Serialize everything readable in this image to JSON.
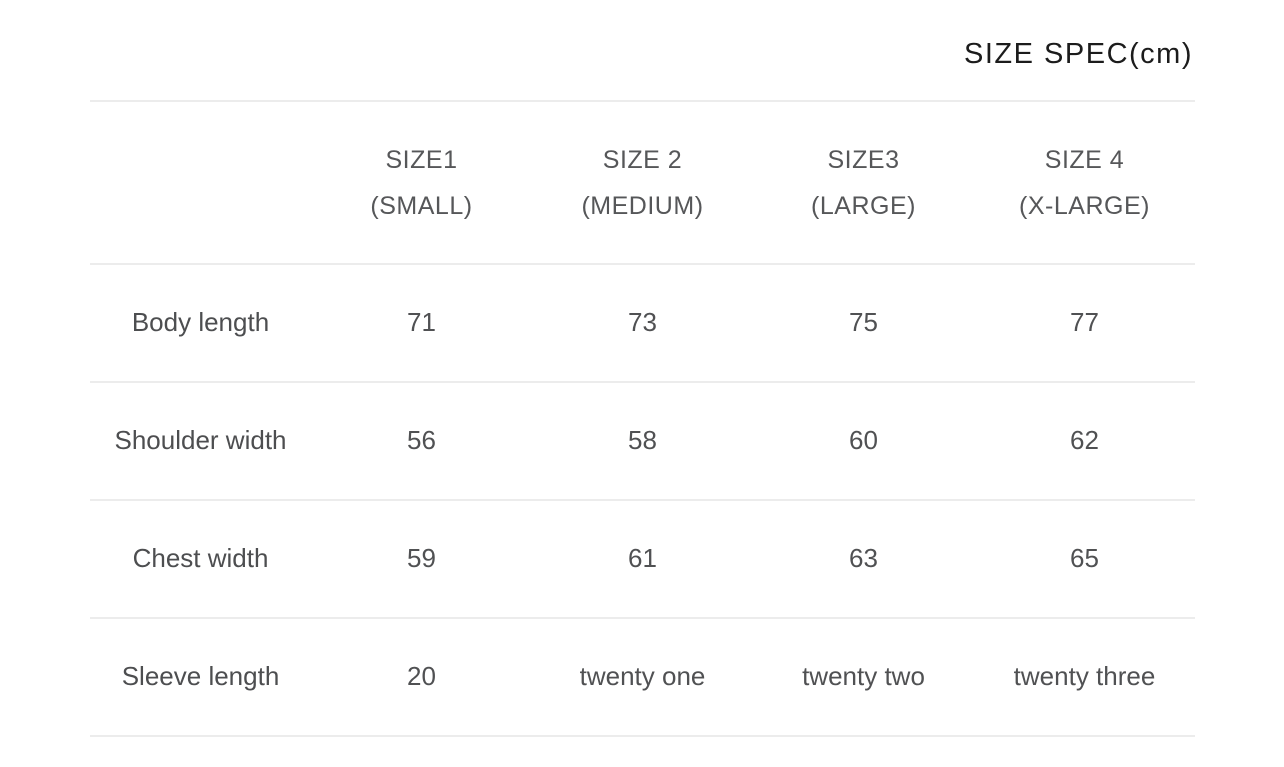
{
  "title": "SIZE SPEC(cm)",
  "colors": {
    "title_text": "#1c1c1c",
    "body_text": "#505153",
    "divider": "#ececec",
    "background": "#ffffff"
  },
  "table": {
    "headers": [
      {
        "size": "SIZE1",
        "fit": "(SMALL)"
      },
      {
        "size": "SIZE 2",
        "fit": "(MEDIUM)"
      },
      {
        "size": "SIZE3",
        "fit": "(LARGE)"
      },
      {
        "size": "SIZE 4",
        "fit": "(X-LARGE)"
      }
    ],
    "rows": [
      {
        "label": "Body length",
        "values": [
          "71",
          "73",
          "75",
          "77"
        ]
      },
      {
        "label": "Shoulder width",
        "values": [
          "56",
          "58",
          "60",
          "62"
        ]
      },
      {
        "label": "Chest width",
        "values": [
          "59",
          "61",
          "63",
          "65"
        ]
      },
      {
        "label": "Sleeve length",
        "values": [
          "20",
          "twenty one",
          "twenty two",
          "twenty three"
        ]
      }
    ]
  },
  "chart_data": {
    "type": "table",
    "title": "SIZE SPEC(cm)",
    "unit": "cm",
    "columns": [
      "SIZE1 (SMALL)",
      "SIZE 2 (MEDIUM)",
      "SIZE3 (LARGE)",
      "SIZE 4 (X-LARGE)"
    ],
    "row_labels": [
      "Body length",
      "Shoulder width",
      "Chest width",
      "Sleeve length"
    ],
    "cells": [
      [
        "71",
        "73",
        "75",
        "77"
      ],
      [
        "56",
        "58",
        "60",
        "62"
      ],
      [
        "59",
        "61",
        "63",
        "65"
      ],
      [
        "20",
        "twenty one",
        "twenty two",
        "twenty three"
      ]
    ],
    "layout": "5 equal columns; first column holds measurement labels; light horizontal dividers between rows; title right-aligned above table"
  }
}
